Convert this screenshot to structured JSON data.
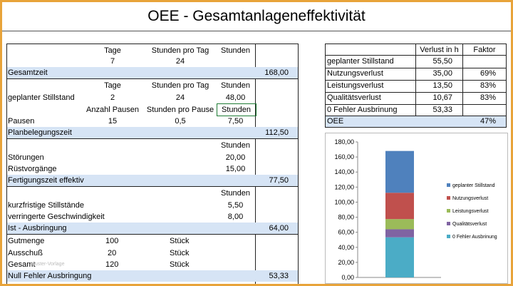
{
  "title": "OEE - Gesamtanlageneffektivität",
  "left": {
    "h1": {
      "tage": "Tage",
      "stunden_pro_tag": "Stunden pro Tag",
      "stunden": "Stunden"
    },
    "r_tage": {
      "tage": "7",
      "stunden_pro_tag": "24"
    },
    "gesamtzeit": {
      "label": "Gesamtzeit",
      "value": "168,00"
    },
    "h2": {
      "tage": "Tage",
      "stunden_pro_tag": "Stunden pro Tag",
      "stunden": "Stunden"
    },
    "geplanter": {
      "label": "geplanter Stillstand",
      "tage": "2",
      "stunden_pro_tag": "24",
      "stunden": "48,00"
    },
    "h3": {
      "anzahl": "Anzahl Pausen",
      "stunden_pro_pause": "Stunden pro Pause",
      "stunden": "Stunden"
    },
    "pausen": {
      "label": "Pausen",
      "anzahl": "15",
      "stunden_pro_pause": "0,5",
      "stunden": "7,50"
    },
    "planbelegungszeit": {
      "label": "Planbelegungszeit",
      "value": "112,50"
    },
    "h4": {
      "stunden": "Stunden"
    },
    "stoerungen": {
      "label": "Störungen",
      "stunden": "20,00"
    },
    "ruestvorgaenge": {
      "label": "Rüstvorgänge",
      "stunden": "15,00"
    },
    "fertigungszeit": {
      "label": "Fertigungszeit effektiv",
      "value": "77,50"
    },
    "h5": {
      "stunden": "Stunden"
    },
    "kurzfristige": {
      "label": "kurzfristige Stillstände",
      "stunden": "5,50"
    },
    "verringerte": {
      "label": "verringerte Geschwindigkeit",
      "stunden": "8,00"
    },
    "ist": {
      "label": "Ist - Ausbringung",
      "value": "64,00"
    },
    "gutmenge": {
      "label": "Gutmenge",
      "value": "100",
      "unit": "Stück"
    },
    "ausschuss": {
      "label": "Ausschuß",
      "value": "20",
      "unit": "Stück"
    },
    "gesamt": {
      "label": "Gesamt",
      "value": "120",
      "unit": "Stück"
    },
    "null_fehler": {
      "label": "Null Fehler Ausbringung",
      "value": "53,33"
    }
  },
  "right": {
    "headers": {
      "verlust": "Verlust in h",
      "faktor": "Faktor"
    },
    "rows": [
      {
        "label": "geplanter Stillstand",
        "verlust": "55,50",
        "faktor": ""
      },
      {
        "label": "Nutzungsverlust",
        "verlust": "35,00",
        "faktor": "69%"
      },
      {
        "label": "Leistungsverlust",
        "verlust": "13,50",
        "faktor": "83%"
      },
      {
        "label": "Qualitätsverlust",
        "verlust": "10,67",
        "faktor": "83%"
      },
      {
        "label": "0 Fehler Ausbrinung",
        "verlust": "53,33",
        "faktor": ""
      }
    ],
    "oee": {
      "label": "OEE",
      "faktor": "47%"
    }
  },
  "chart_data": {
    "type": "bar",
    "stacked": true,
    "categories": [
      ""
    ],
    "ylim": [
      0,
      180
    ],
    "yticks": [
      "0,00",
      "20,00",
      "40,00",
      "60,00",
      "80,00",
      "100,00",
      "120,00",
      "140,00",
      "160,00",
      "180,00"
    ],
    "series": [
      {
        "name": "0 Fehler Ausbrinung",
        "values": [
          53.33
        ],
        "color": "#4bacc6"
      },
      {
        "name": "Qualitätsverlust",
        "values": [
          10.67
        ],
        "color": "#8064a2"
      },
      {
        "name": "Leistungsverlust",
        "values": [
          13.5
        ],
        "color": "#9bbb59"
      },
      {
        "name": "Nutzungsverlust",
        "values": [
          35.0
        ],
        "color": "#c0504d"
      },
      {
        "name": "geplanter Stillstand",
        "values": [
          55.5
        ],
        "color": "#4f81bd"
      }
    ],
    "legend": [
      {
        "name": "geplanter Stillstand",
        "color": "#4f81bd"
      },
      {
        "name": "Nutzungsverlust",
        "color": "#c0504d"
      },
      {
        "name": "Leistungsverlust",
        "color": "#9bbb59"
      },
      {
        "name": "Qualitätsverlust",
        "color": "#8064a2"
      },
      {
        "name": "0 Fehler Ausbrinung",
        "color": "#4bacc6"
      }
    ],
    "legend_position": "right"
  },
  "watermark": "Muster-Vorlage"
}
